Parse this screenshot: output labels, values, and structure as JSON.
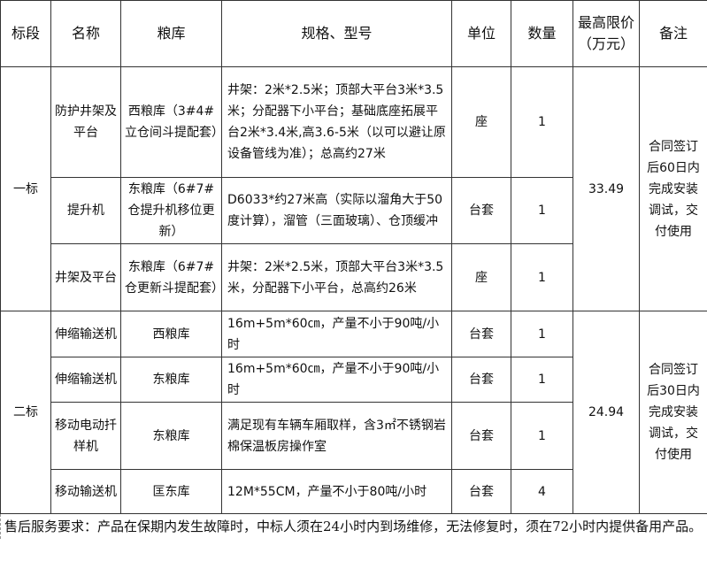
{
  "headers": [
    "标段",
    "名称",
    "粮库",
    "规格、型号",
    "单位",
    "数量",
    "最高限价（万元）",
    "备注"
  ],
  "sections": [
    {
      "section": "一标",
      "price": "33.49",
      "note": "合同签订后60日内完成安装调试，交付使用",
      "rows": [
        {
          "name": "防护井架及平台",
          "depot": "西粮库（3#4#立仓间斗提配套）",
          "spec": "井架：2米*2.5米；顶部大平台3米*3.5米；分配器下小平台；基础底座拓展平台2米*3.4米,高3.6-5米（以可以避让原设备管线为准）；总高约27米",
          "unit": "座",
          "qty": "1"
        },
        {
          "name": "提升机",
          "depot": "东粮库（6#7#仓提升机移位更新）",
          "spec": "D6033*约27米高（实际以溜角大于50度计算），溜管（三面玻璃）、仓顶缓冲",
          "unit": "台套",
          "qty": "1"
        },
        {
          "name": "井架及平台",
          "depot": "东粮库（6#7#仓更新斗提配套）",
          "spec": "井架：2米*2.5米，顶部大平台3米*3.5米，分配器下小平台，总高约26米",
          "unit": "座",
          "qty": "1"
        }
      ]
    },
    {
      "section": "二标",
      "price": "24.94",
      "note": "合同签订后30日内完成安装调试，交付使用",
      "rows": [
        {
          "name": "伸缩输送机",
          "depot": "西粮库",
          "spec": "16m+5m*60㎝，产量不小于90吨/小时",
          "unit": "台套",
          "qty": "1"
        },
        {
          "name": "伸缩输送机",
          "depot": "东粮库",
          "spec": "16m+5m*60㎝，产量不小于90吨/小时",
          "unit": "台套",
          "qty": "1"
        },
        {
          "name": "移动电动扦样机",
          "depot": "东粮库",
          "spec": "满足现有车辆车厢取样，含3㎡不锈钢岩棉保温板房操作室",
          "unit": "台套",
          "qty": "1"
        },
        {
          "name": "移动输送机",
          "depot": "匡东库",
          "spec": "12M*55CM，产量不小于80吨/小时",
          "unit": "台套",
          "qty": "4"
        }
      ]
    }
  ],
  "footer": "售后服务要求：产品在保期内发生故障时，中标人须在24小时内到场维修，无法修复时，须在72小时内提供备用产品。"
}
